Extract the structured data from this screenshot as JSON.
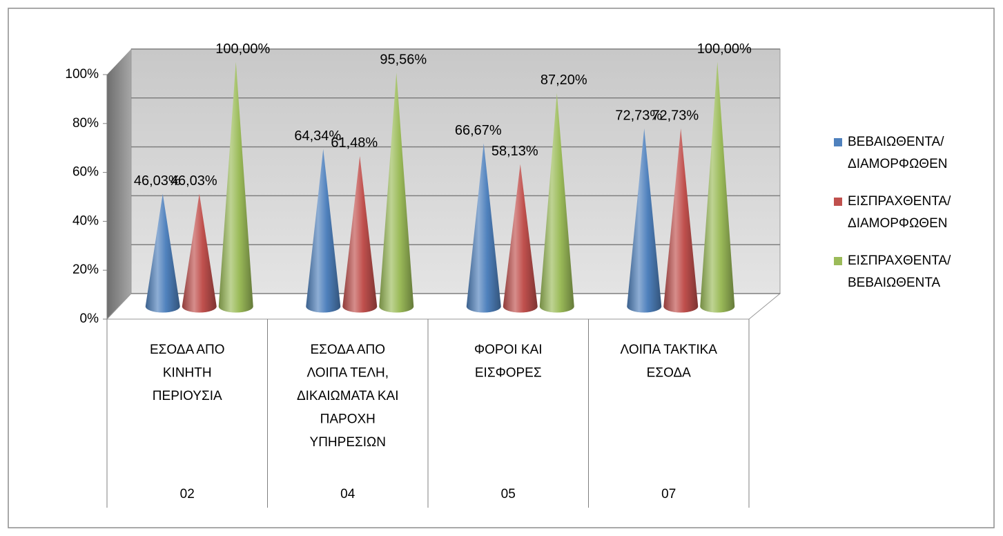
{
  "chart_data": {
    "type": "cone",
    "categories": [
      [
        "ΕΣΟΔΑ ΑΠΟ",
        "ΚΙΝΗΤΗ",
        "ΠΕΡΙΟΥΣΙΑ"
      ],
      [
        "ΕΣΟΔΑ ΑΠΟ",
        "ΛΟΙΠΑ ΤΕΛΗ,",
        "ΔΙΚΑΙΩΜΑΤΑ ΚΑΙ",
        "ΠΑΡΟΧΗ",
        "ΥΠΗΡΕΣΙΩΝ"
      ],
      [
        "ΦΟΡΟΙ ΚΑΙ",
        "ΕΙΣΦΟΡΕΣ"
      ],
      [
        "ΛΟΙΠΑ ΤΑΚΤΙΚΑ",
        "ΕΣΟΔΑ"
      ]
    ],
    "category_codes": [
      "02",
      "04",
      "05",
      "07"
    ],
    "series": [
      {
        "name": "ΒΕΒΑΙΩΘΕΝΤΑ/ ΔΙΑΜΟΡΦΩΘΕΝ",
        "color": "#4f81bd",
        "values": [
          46.03,
          64.34,
          66.67,
          72.73
        ],
        "value_labels": [
          "46,03%",
          "64,34%",
          "66,67%",
          "72,73%"
        ]
      },
      {
        "name": "ΕΙΣΠΡΑΧΘΕΝΤΑ/ ΔΙΑΜΟΡΦΩΘΕΝ",
        "color": "#c0504d",
        "values": [
          46.03,
          61.48,
          58.13,
          72.73
        ],
        "value_labels": [
          "46,03%",
          "61,48%",
          "58,13%",
          "72,73%"
        ]
      },
      {
        "name": "ΕΙΣΠΡΑΧΘΕΝΤΑ/ ΒΕΒΑΙΩΘΕΝΤΑ",
        "color": "#9bbb59",
        "values": [
          100,
          95.56,
          87.2,
          100
        ],
        "value_labels": [
          "100,00%",
          "95,56%",
          "87,20%",
          "100,00%"
        ]
      }
    ],
    "ylim": [
      0,
      100
    ],
    "yticks": [
      {
        "value": 0,
        "label": "0%"
      },
      {
        "value": 20,
        "label": "20%"
      },
      {
        "value": 40,
        "label": "40%"
      },
      {
        "value": 60,
        "label": "60%"
      },
      {
        "value": 80,
        "label": "80%"
      },
      {
        "value": 100,
        "label": "100%"
      }
    ],
    "grid": true,
    "legend": "right"
  }
}
